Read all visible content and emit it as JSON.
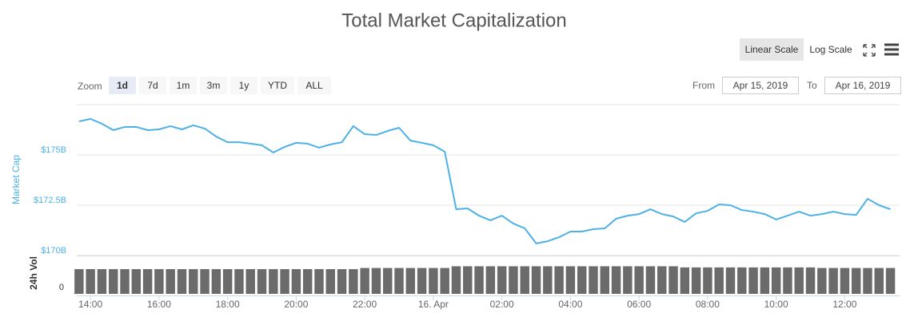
{
  "header": {
    "title": "Total Market Capitalization"
  },
  "controls": {
    "scale_buttons": [
      "Linear Scale",
      "Log Scale"
    ],
    "active_scale": 0,
    "zoom_label": "Zoom",
    "zoom_buttons": [
      "1d",
      "7d",
      "1m",
      "3m",
      "1y",
      "YTD",
      "ALL"
    ],
    "active_zoom": 0,
    "from_label": "From",
    "from_value": "Apr 15, 2019",
    "to_label": "To",
    "to_value": "Apr 16, 2019"
  },
  "chart_data": {
    "type": "line",
    "ylabel": "Market Cap",
    "color": "#4db1e6",
    "grid": true,
    "x": [
      "2019-04-15T13:40",
      "2019-04-15T14:00",
      "2019-04-15T14:20",
      "2019-04-15T14:40",
      "2019-04-15T15:00",
      "2019-04-15T15:20",
      "2019-04-15T15:40",
      "2019-04-15T16:00",
      "2019-04-15T16:20",
      "2019-04-15T16:40",
      "2019-04-15T17:00",
      "2019-04-15T17:20",
      "2019-04-15T17:40",
      "2019-04-15T18:00",
      "2019-04-15T18:20",
      "2019-04-15T18:40",
      "2019-04-15T19:00",
      "2019-04-15T19:20",
      "2019-04-15T19:40",
      "2019-04-15T20:00",
      "2019-04-15T20:20",
      "2019-04-15T20:40",
      "2019-04-15T21:00",
      "2019-04-15T21:20",
      "2019-04-15T21:40",
      "2019-04-15T22:00",
      "2019-04-15T22:20",
      "2019-04-15T22:40",
      "2019-04-15T23:00",
      "2019-04-15T23:20",
      "2019-04-15T23:40",
      "2019-04-16T00:00",
      "2019-04-16T00:20",
      "2019-04-16T00:40",
      "2019-04-16T01:00",
      "2019-04-16T01:20",
      "2019-04-16T01:40",
      "2019-04-16T02:00",
      "2019-04-16T02:20",
      "2019-04-16T02:40",
      "2019-04-16T03:00",
      "2019-04-16T03:20",
      "2019-04-16T03:40",
      "2019-04-16T04:00",
      "2019-04-16T04:20",
      "2019-04-16T04:40",
      "2019-04-16T05:00",
      "2019-04-16T05:20",
      "2019-04-16T05:40",
      "2019-04-16T06:00",
      "2019-04-16T06:20",
      "2019-04-16T06:40",
      "2019-04-16T07:00",
      "2019-04-16T07:20",
      "2019-04-16T07:40",
      "2019-04-16T08:00",
      "2019-04-16T08:20",
      "2019-04-16T08:40",
      "2019-04-16T09:00",
      "2019-04-16T09:20",
      "2019-04-16T09:40",
      "2019-04-16T10:00",
      "2019-04-16T10:20",
      "2019-04-16T10:40",
      "2019-04-16T11:00",
      "2019-04-16T11:20",
      "2019-04-16T11:40",
      "2019-04-16T12:00",
      "2019-04-16T12:20",
      "2019-04-16T12:40",
      "2019-04-16T13:00",
      "2019-04-16T13:20"
    ],
    "values": [
      176.67,
      176.79,
      176.55,
      176.23,
      176.39,
      176.39,
      176.23,
      176.27,
      176.43,
      176.27,
      176.47,
      176.31,
      175.91,
      175.63,
      175.63,
      175.56,
      175.48,
      175.12,
      175.4,
      175.6,
      175.56,
      175.36,
      175.52,
      175.63,
      176.43,
      176.03,
      175.99,
      176.19,
      176.35,
      175.71,
      175.6,
      175.48,
      175.16,
      172.3,
      172.34,
      171.98,
      171.75,
      171.98,
      171.59,
      171.35,
      170.6,
      170.71,
      170.91,
      171.19,
      171.19,
      171.31,
      171.35,
      171.83,
      171.98,
      172.06,
      172.3,
      172.06,
      171.94,
      171.67,
      172.1,
      172.22,
      172.54,
      172.5,
      172.26,
      172.18,
      172.06,
      171.79,
      171.98,
      172.18,
      171.98,
      172.06,
      172.18,
      172.06,
      172.02,
      172.82,
      172.5,
      172.3
    ],
    "ylim": [
      170,
      177.5
    ],
    "yticks": [
      {
        "value": 170,
        "label": "$170B"
      },
      {
        "value": 172.5,
        "label": "$172.5B"
      },
      {
        "value": 175,
        "label": "$175B"
      }
    ],
    "xlim": [
      "2019-04-15T13:36",
      "2019-04-16T13:36"
    ],
    "xticks": [
      {
        "value": "2019-04-15T14:00",
        "label": "14:00"
      },
      {
        "value": "2019-04-15T16:00",
        "label": "16:00"
      },
      {
        "value": "2019-04-15T18:00",
        "label": "18:00"
      },
      {
        "value": "2019-04-15T20:00",
        "label": "20:00"
      },
      {
        "value": "2019-04-15T22:00",
        "label": "22:00"
      },
      {
        "value": "2019-04-16T00:00",
        "label": "16. Apr"
      },
      {
        "value": "2019-04-16T02:00",
        "label": "02:00"
      },
      {
        "value": "2019-04-16T04:00",
        "label": "04:00"
      },
      {
        "value": "2019-04-16T06:00",
        "label": "06:00"
      },
      {
        "value": "2019-04-16T08:00",
        "label": "08:00"
      },
      {
        "value": "2019-04-16T10:00",
        "label": "10:00"
      },
      {
        "value": "2019-04-16T12:00",
        "label": "12:00"
      }
    ],
    "volume": {
      "type": "bar",
      "ylabel": "24h Vol",
      "color": "#6b6b6b",
      "values": [
        43,
        43,
        43,
        43,
        43,
        43,
        43,
        43,
        43,
        43,
        43,
        43,
        43,
        43,
        43,
        43,
        43,
        43,
        43,
        43,
        43,
        43,
        43,
        43,
        43,
        45,
        45,
        45,
        45,
        45,
        45,
        45,
        45,
        48,
        48,
        48,
        48,
        48,
        48,
        48,
        48,
        48,
        48,
        48,
        48,
        48,
        48,
        48,
        48,
        48,
        48,
        48,
        48,
        46,
        46,
        46,
        46,
        46,
        46,
        46,
        46,
        46,
        46,
        46,
        46,
        45,
        45,
        45,
        45,
        45,
        45,
        45
      ],
      "ylim": [
        0,
        50
      ],
      "yticks": [
        0
      ]
    }
  }
}
